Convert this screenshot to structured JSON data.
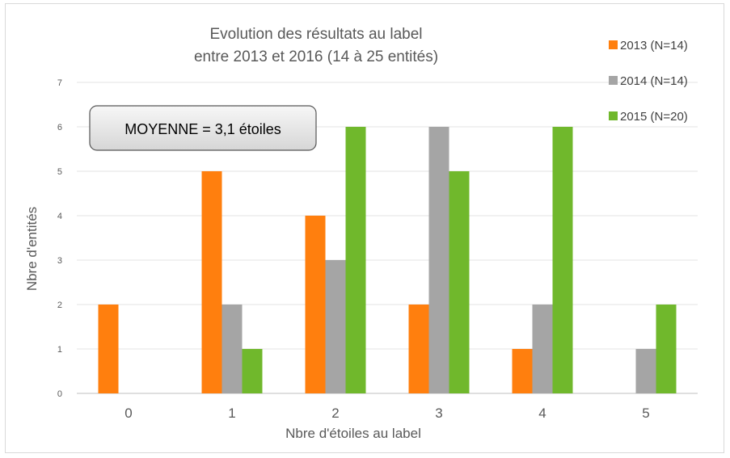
{
  "chart_data": {
    "type": "bar",
    "title": [
      "Evolution des résultats au label",
      "entre 2013 et 2016 (14 à 25 entités)"
    ],
    "xlabel": "Nbre d'étoiles au label",
    "ylabel": "Nbre d'entités",
    "categories": [
      "0",
      "1",
      "2",
      "3",
      "4",
      "5"
    ],
    "ylim": [
      0,
      7
    ],
    "yticks": [
      "0",
      "1",
      "2",
      "3",
      "4",
      "5",
      "6",
      "7"
    ],
    "grid": true,
    "legend_position": "top-right",
    "series": [
      {
        "name": "2013 (N=14)",
        "color": "#ff7f0e",
        "values": [
          2,
          5,
          4,
          2,
          1,
          0
        ]
      },
      {
        "name": "2014 (N=14)",
        "color": "#a5a5a5",
        "values": [
          0,
          2,
          3,
          6,
          2,
          1
        ]
      },
      {
        "name": "2015 (N=20)",
        "color": "#70b82c",
        "values": [
          0,
          1,
          6,
          5,
          6,
          2
        ]
      }
    ],
    "annotation": "MOYENNE = 3,1 étoiles"
  }
}
